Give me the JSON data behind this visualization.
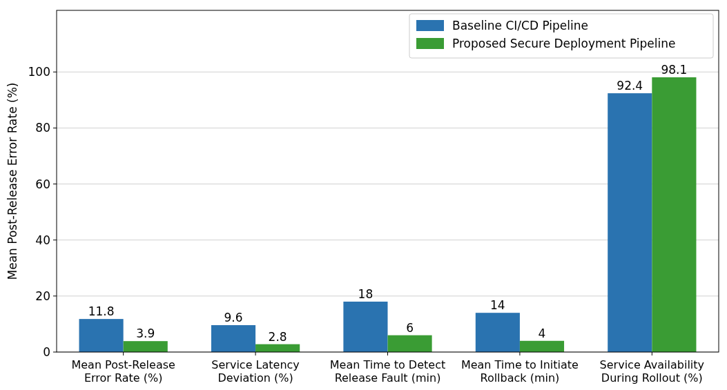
{
  "chart_data": {
    "type": "bar",
    "ylabel": "Mean Post-Release Error Rate (%)",
    "categories": [
      "Mean Post-Release\nError Rate (%)",
      "Service Latency\nDeviation (%)",
      "Mean Time to Detect\nRelease Fault (min)",
      "Mean Time to Initiate\nRollback (min)",
      "Service Availability\nDuring Rollout (%)"
    ],
    "series": [
      {
        "name": "Baseline CI/CD Pipeline",
        "color": "#2a73b0",
        "values": [
          11.8,
          9.6,
          18,
          14,
          92.4
        ]
      },
      {
        "name": "Proposed Secure Deployment Pipeline",
        "color": "#3a9c34",
        "values": [
          3.9,
          2.8,
          6,
          4,
          98.1
        ]
      }
    ],
    "ylim": [
      0,
      122
    ],
    "yticks": [
      0,
      20,
      40,
      60,
      80,
      100
    ],
    "grid": "y",
    "legend": "top right",
    "data_labels": true
  }
}
